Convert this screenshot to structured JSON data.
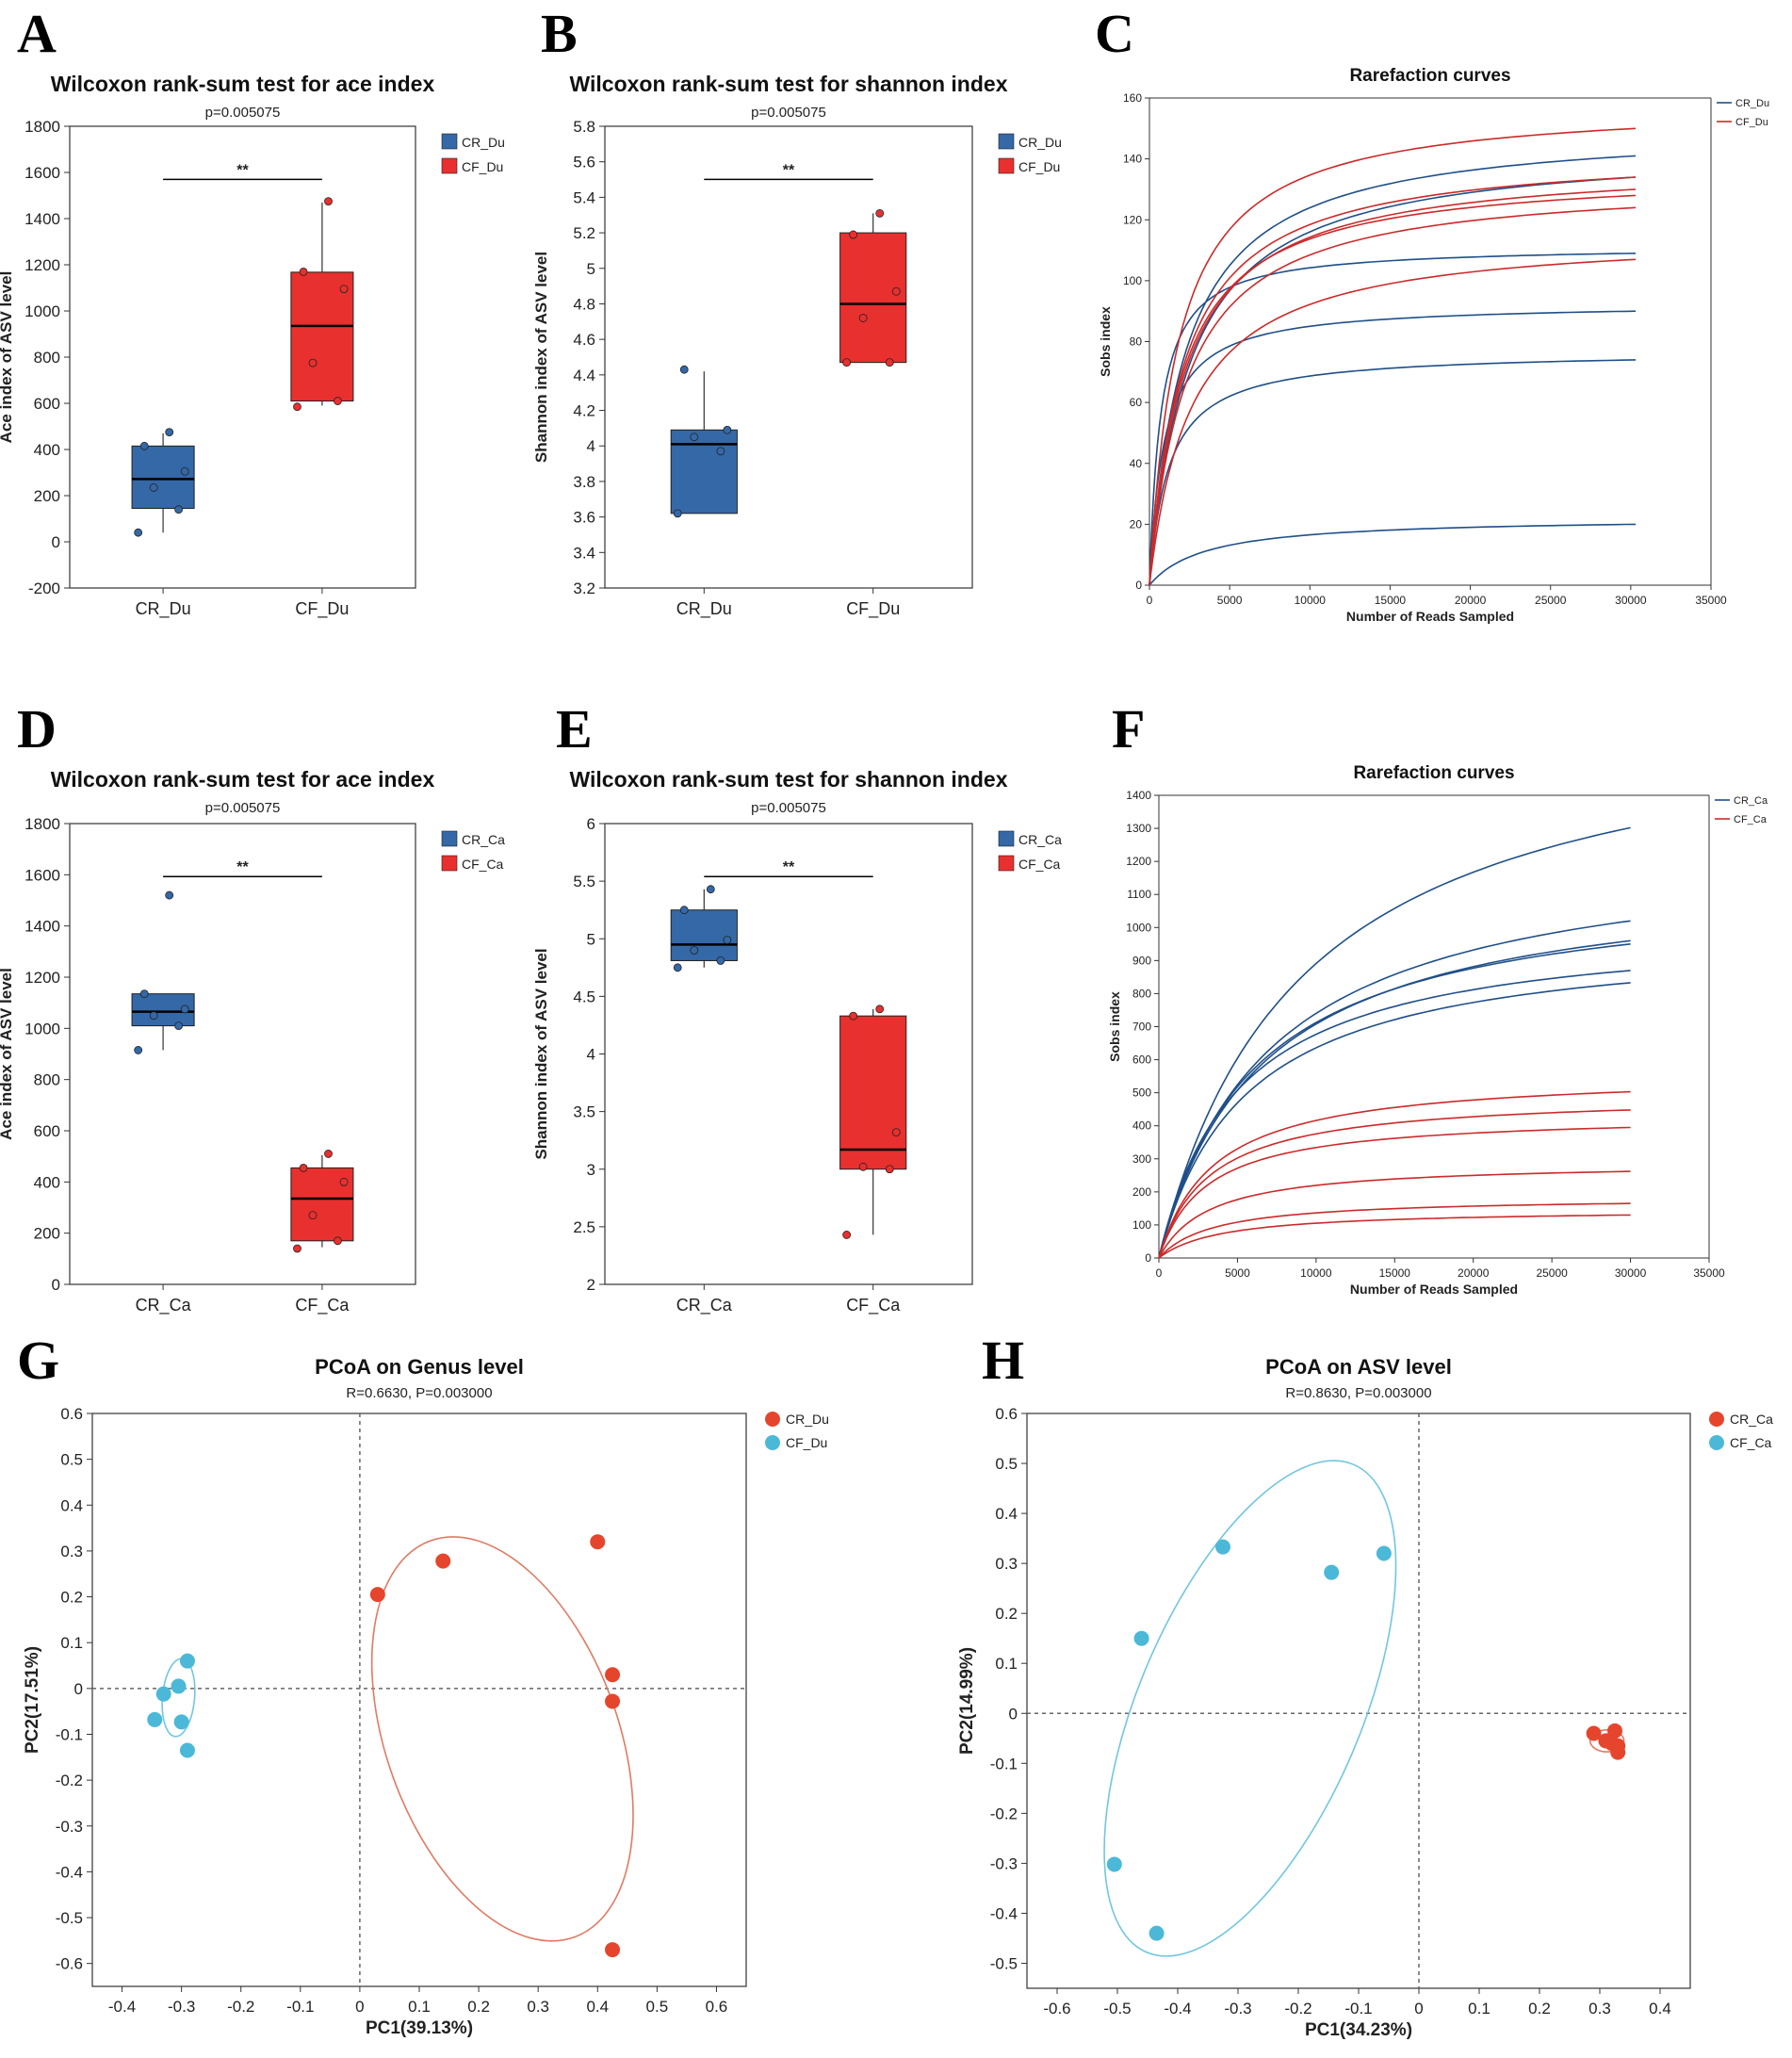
{
  "colors": {
    "blue": "#3468a6",
    "red": "#e8302f",
    "cyan": "#4cb8d8",
    "orange_red": "#e6452d",
    "ellipse_red": "#e07a63",
    "ellipse_cyan": "#72c6df",
    "line_blue": "#1f4f88",
    "line_red": "#cc2a2a"
  },
  "panels": {
    "A": {
      "label": "A",
      "chart_data": {
        "type": "box",
        "title": "Wilcoxon rank-sum test for ace index",
        "subtitle": "p=0.005075",
        "ylabel": "Ace index of ASV level",
        "xlabel": "",
        "ylim": [
          -200,
          1800
        ],
        "yticks": [
          -200,
          0,
          200,
          400,
          600,
          800,
          1000,
          1200,
          1400,
          1600,
          1800
        ],
        "categories": [
          "CR_Du",
          "CF_Du"
        ],
        "legend": [
          "CR_Du",
          "CF_Du"
        ],
        "significance": "**",
        "boxes": [
          {
            "name": "CR_Du",
            "min": 40,
            "q1": 145,
            "median": 272,
            "q3": 415,
            "max": 470,
            "points": [
              40,
              140,
              235,
              305,
              415,
              475
            ]
          },
          {
            "name": "CF_Du",
            "min": 590,
            "q1": 610,
            "median": 935,
            "q3": 1168,
            "max": 1470,
            "points": [
              585,
              610,
              775,
              1095,
              1170,
              1475
            ]
          }
        ]
      }
    },
    "B": {
      "label": "B",
      "chart_data": {
        "type": "box",
        "title": "Wilcoxon rank-sum test for shannon index",
        "subtitle": "p=0.005075",
        "ylabel": "Shannon index of ASV level",
        "xlabel": "",
        "ylim": [
          3.2,
          5.8
        ],
        "yticks": [
          3.2,
          3.4,
          3.6,
          3.8,
          4,
          4.2,
          4.4,
          4.6,
          4.8,
          5,
          5.2,
          5.4,
          5.6,
          5.8
        ],
        "categories": [
          "CR_Du",
          "CF_Du"
        ],
        "legend": [
          "CR_Du",
          "CF_Du"
        ],
        "significance": "**",
        "boxes": [
          {
            "name": "CR_Du",
            "min": 3.62,
            "q1": 3.62,
            "median": 4.01,
            "q3": 4.09,
            "max": 4.42,
            "points": [
              3.62,
              3.97,
              4.05,
              4.09,
              4.43
            ]
          },
          {
            "name": "CF_Du",
            "min": 4.47,
            "q1": 4.47,
            "median": 4.8,
            "q3": 5.2,
            "max": 5.31,
            "points": [
              4.47,
              4.47,
              4.72,
              4.87,
              5.19,
              5.31
            ]
          }
        ]
      }
    },
    "C": {
      "label": "C",
      "chart_data": {
        "type": "line",
        "title": "Rarefaction curves",
        "xlabel": "Number of Reads Sampled",
        "ylabel": "Sobs index",
        "xlim": [
          0,
          35000
        ],
        "ylim": [
          0,
          160
        ],
        "xticks": [
          0,
          5000,
          10000,
          15000,
          20000,
          25000,
          30000,
          35000
        ],
        "yticks": [
          0,
          20,
          40,
          60,
          80,
          100,
          120,
          140,
          160
        ],
        "x_end": 30300,
        "legend": [
          "CR_Du",
          "CF_Du"
        ],
        "series": [
          {
            "name": "CR_Du",
            "final": [
              141,
              134,
              109,
              90,
              74,
              20
            ],
            "k": [
              2200,
              2500,
              700,
              900,
              1200,
              3500
            ]
          },
          {
            "name": "CF_Du",
            "final": [
              150,
              134,
              130,
              128,
              124,
              107
            ],
            "k": [
              1800,
              2100,
              2200,
              2000,
              2300,
              2600
            ]
          }
        ]
      }
    },
    "D": {
      "label": "D",
      "chart_data": {
        "type": "box",
        "title": "Wilcoxon rank-sum test for ace index",
        "subtitle": "p=0.005075",
        "ylabel": "Ace index of ASV level",
        "xlabel": "",
        "ylim": [
          0,
          1800
        ],
        "yticks": [
          0,
          200,
          400,
          600,
          800,
          1000,
          1200,
          1400,
          1600,
          1800
        ],
        "categories": [
          "CR_Ca",
          "CF_Ca"
        ],
        "legend": [
          "CR_Ca",
          "CF_Ca"
        ],
        "significance": "**",
        "boxes": [
          {
            "name": "CR_Ca",
            "min": 915,
            "q1": 1010,
            "median": 1065,
            "q3": 1135,
            "max": 1135,
            "points": [
              915,
              1010,
              1050,
              1075,
              1135,
              1520
            ]
          },
          {
            "name": "CF_Ca",
            "min": 145,
            "q1": 170,
            "median": 335,
            "q3": 455,
            "max": 505,
            "points": [
              140,
              170,
              270,
              400,
              455,
              510
            ]
          }
        ]
      }
    },
    "E": {
      "label": "E",
      "chart_data": {
        "type": "box",
        "title": "Wilcoxon rank-sum test for shannon index",
        "subtitle": "p=0.005075",
        "ylabel": "Shannon index of ASV level",
        "xlabel": "",
        "ylim": [
          2,
          6
        ],
        "yticks": [
          2,
          2.5,
          3,
          3.5,
          4,
          4.5,
          5,
          5.5,
          6
        ],
        "categories": [
          "CR_Ca",
          "CF_Ca"
        ],
        "legend": [
          "CR_Ca",
          "CF_Ca"
        ],
        "significance": "**",
        "boxes": [
          {
            "name": "CR_Ca",
            "min": 4.75,
            "q1": 4.81,
            "median": 4.95,
            "q3": 5.25,
            "max": 5.43,
            "points": [
              4.75,
              4.81,
              4.9,
              4.99,
              5.25,
              5.43
            ]
          },
          {
            "name": "CF_Ca",
            "min": 2.43,
            "q1": 3.0,
            "median": 3.17,
            "q3": 4.33,
            "max": 4.39,
            "points": [
              2.43,
              3.0,
              3.02,
              3.32,
              4.33,
              4.39
            ]
          }
        ]
      }
    },
    "F": {
      "label": "F",
      "chart_data": {
        "type": "line",
        "title": "Rarefaction curves",
        "xlabel": "Number of Reads Sampled",
        "ylabel": "Sobs index",
        "xlim": [
          0,
          35000
        ],
        "ylim": [
          0,
          1400
        ],
        "xticks": [
          0,
          5000,
          10000,
          15000,
          20000,
          25000,
          30000,
          35000
        ],
        "yticks": [
          0,
          100,
          200,
          300,
          400,
          500,
          600,
          700,
          800,
          900,
          1000,
          1100,
          1200,
          1300,
          1400
        ],
        "x_end": 30000,
        "legend": [
          "CR_Ca",
          "CF_Ca"
        ],
        "series": [
          {
            "name": "CR_Ca",
            "final": [
              1302,
              1020,
              960,
              950,
              870,
              833
            ],
            "k": [
              9000,
              7000,
              6500,
              6000,
              5000,
              5500
            ]
          },
          {
            "name": "CF_Ca",
            "final": [
              503,
              448,
              395,
              262,
              165,
              130
            ],
            "k": [
              3500,
              3200,
              3000,
              3200,
              3500,
              4000
            ]
          }
        ]
      }
    },
    "G": {
      "label": "G",
      "chart_data": {
        "type": "scatter",
        "title": "PCoA on Genus level",
        "subtitle": "R=0.6630, P=0.003000",
        "xlabel": "PC1(39.13%)",
        "ylabel": "PC2(17.51%)",
        "xlim": [
          -0.45,
          0.65
        ],
        "ylim": [
          -0.65,
          0.6
        ],
        "xticks": [
          -0.4,
          -0.3,
          -0.2,
          -0.1,
          0,
          0.1,
          0.2,
          0.3,
          0.4,
          0.5,
          0.6
        ],
        "yticks": [
          -0.6,
          -0.5,
          -0.4,
          -0.3,
          -0.2,
          -0.1,
          0,
          0.1,
          0.2,
          0.3,
          0.4,
          0.5,
          0.6
        ],
        "legend": [
          "CR_Du",
          "CF_Du"
        ],
        "series": [
          {
            "name": "CR_Du",
            "points": [
              [
                0.03,
                0.205
              ],
              [
                0.14,
                0.278
              ],
              [
                0.4,
                0.32
              ],
              [
                0.425,
                0.03
              ],
              [
                0.425,
                -0.028
              ],
              [
                0.425,
                -0.57
              ]
            ],
            "ellipse": {
              "cx": 0.24,
              "cy": -0.11,
              "rx": 0.195,
              "ry": 0.46,
              "rot": -20
            }
          },
          {
            "name": "CF_Du",
            "points": [
              [
                -0.29,
                0.06
              ],
              [
                -0.305,
                0.005
              ],
              [
                -0.33,
                -0.012
              ],
              [
                -0.345,
                -0.068
              ],
              [
                -0.3,
                -0.073
              ],
              [
                -0.29,
                -0.135
              ]
            ],
            "ellipse": {
              "cx": -0.305,
              "cy": -0.02,
              "rx": 0.027,
              "ry": 0.085,
              "rot": 5
            }
          }
        ]
      }
    },
    "H": {
      "label": "H",
      "chart_data": {
        "type": "scatter",
        "title": "PCoA on ASV level",
        "subtitle": "R=0.8630, P=0.003000",
        "xlabel": "PC1(34.23%)",
        "ylabel": "PC2(14.99%)",
        "xlim": [
          -0.65,
          0.45
        ],
        "ylim": [
          -0.55,
          0.6
        ],
        "xticks": [
          -0.6,
          -0.5,
          -0.4,
          -0.3,
          -0.2,
          -0.1,
          0,
          0.1,
          0.2,
          0.3,
          0.4
        ],
        "yticks": [
          -0.5,
          -0.4,
          -0.3,
          -0.2,
          -0.1,
          0,
          0.1,
          0.2,
          0.3,
          0.4,
          0.5,
          0.6
        ],
        "legend": [
          "CR_Ca",
          "CF_Ca"
        ],
        "series": [
          {
            "name": "CR_Ca",
            "points": [
              [
                0.29,
                -0.04
              ],
              [
                0.31,
                -0.055
              ],
              [
                0.325,
                -0.035
              ],
              [
                0.32,
                -0.06
              ],
              [
                0.33,
                -0.065
              ],
              [
                0.33,
                -0.078
              ]
            ],
            "ellipse": {
              "cx": 0.312,
              "cy": -0.055,
              "rx": 0.028,
              "ry": 0.022,
              "rot": 0
            }
          },
          {
            "name": "CF_Ca",
            "points": [
              [
                -0.46,
                0.15
              ],
              [
                -0.325,
                0.333
              ],
              [
                -0.145,
                0.282
              ],
              [
                -0.058,
                0.32
              ],
              [
                -0.505,
                -0.302
              ],
              [
                -0.435,
                -0.44
              ]
            ],
            "ellipse": {
              "cx": -0.28,
              "cy": 0.01,
              "rx": 0.185,
              "ry": 0.53,
              "rot": 23
            }
          }
        ]
      }
    }
  }
}
